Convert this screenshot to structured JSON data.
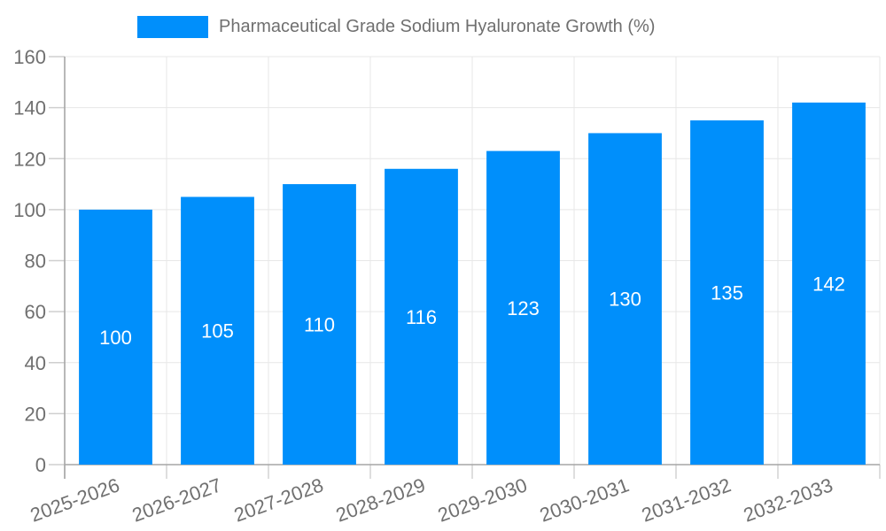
{
  "chart_data": {
    "type": "bar",
    "title": "Pharmaceutical Grade Sodium Hyaluronate Growth (%)",
    "legend_position": "top",
    "legend": [
      {
        "label": "Pharmaceutical Grade Sodium Hyaluronate Growth (%)",
        "color": "#008FFB"
      }
    ],
    "categories": [
      "2025-2026",
      "2026-2027",
      "2027-2028",
      "2028-2029",
      "2029-2030",
      "2030-2031",
      "2031-2032",
      "2032-2033"
    ],
    "series": [
      {
        "name": "Pharmaceutical Grade Sodium Hyaluronate Growth (%)",
        "values": [
          100,
          105,
          110,
          116,
          123,
          130,
          135,
          142
        ]
      }
    ],
    "value_labels": [
      "100",
      "105",
      "110",
      "116",
      "123",
      "130",
      "135",
      "142"
    ],
    "xlabel": "",
    "ylabel": "",
    "ylim": [
      0,
      160
    ],
    "yticks": [
      0,
      20,
      40,
      60,
      80,
      100,
      120,
      140,
      160
    ],
    "grid": true,
    "colors": {
      "bar": "#008FFB",
      "value_label": "#ffffff",
      "axis_text": "#707070",
      "gridline": "#e7e7e7",
      "tick": "#cfcfcf",
      "axis_line": "#a6a6a6",
      "background": "#ffffff"
    }
  }
}
